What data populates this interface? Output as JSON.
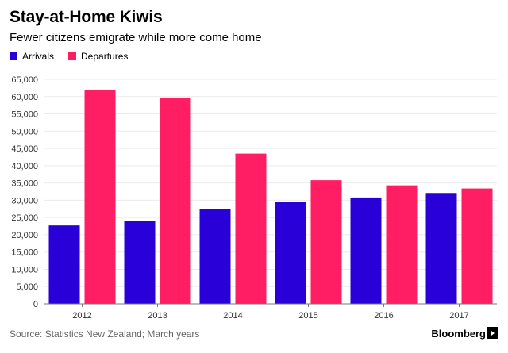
{
  "header": {
    "title": "Stay-at-Home Kiwis",
    "subtitle": "Fewer citizens emigrate while more come home"
  },
  "footer": {
    "source": "Source: Statistics New Zealand; March years",
    "brand": "Bloomberg"
  },
  "colors": {
    "arrivals": "#2a00d8",
    "departures": "#ff1d63",
    "grid": "#ebebeb",
    "axis": "#777777"
  },
  "chart_data": {
    "type": "bar",
    "title": "Stay-at-Home Kiwis",
    "subtitle": "Fewer citizens emigrate while more come home",
    "xlabel": "",
    "ylabel": "",
    "categories": [
      "2012",
      "2013",
      "2014",
      "2015",
      "2016",
      "2017"
    ],
    "series": [
      {
        "name": "Arrivals",
        "values": [
          22700,
          24100,
          27400,
          29400,
          30800,
          32100
        ]
      },
      {
        "name": "Departures",
        "values": [
          61900,
          59500,
          43500,
          35800,
          34300,
          33400
        ]
      }
    ],
    "ylim": [
      0,
      65000
    ],
    "yticks": [
      0,
      5000,
      10000,
      15000,
      20000,
      25000,
      30000,
      35000,
      40000,
      45000,
      50000,
      55000,
      60000,
      65000
    ],
    "ytick_labels": [
      "0",
      "5,000",
      "10,000",
      "15,000",
      "20,000",
      "25,000",
      "30,000",
      "35,000",
      "40,000",
      "45,000",
      "50,000",
      "55,000",
      "60,000",
      "65,000"
    ],
    "grid": true,
    "legend": "top-left"
  }
}
